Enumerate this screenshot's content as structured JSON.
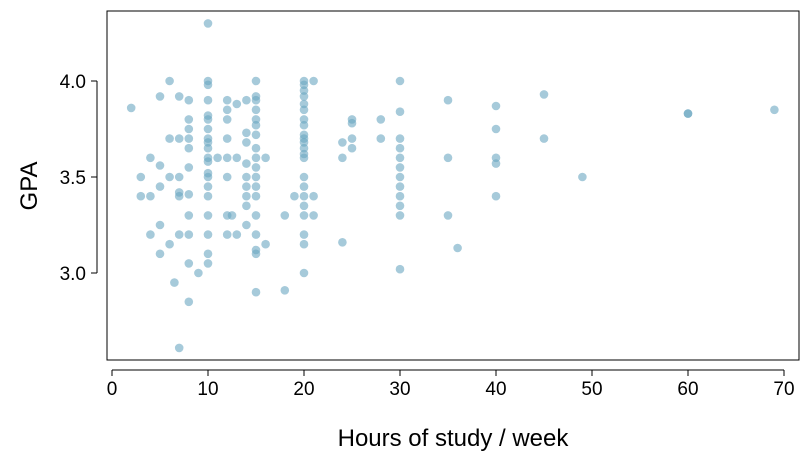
{
  "chart_data": {
    "type": "scatter",
    "xlabel": "Hours of study / week",
    "ylabel": "GPA",
    "xlim": [
      0,
      71
    ],
    "ylim": [
      2.55,
      4.35
    ],
    "xticks": [
      0,
      10,
      20,
      30,
      40,
      50,
      60,
      70
    ],
    "xtick_labels": [
      "0",
      "10",
      "20",
      "30",
      "40",
      "50",
      "60",
      "70"
    ],
    "yticks": [
      3.0,
      3.5,
      4.0
    ],
    "ytick_labels": [
      "3.0",
      "3.5",
      "4.0"
    ],
    "grid": false,
    "point_color": "#6aa6c1",
    "points": [
      [
        2,
        3.86
      ],
      [
        3,
        3.5
      ],
      [
        3,
        3.4
      ],
      [
        4,
        3.6
      ],
      [
        4,
        3.4
      ],
      [
        4,
        3.2
      ],
      [
        5,
        3.92
      ],
      [
        5,
        3.56
      ],
      [
        5,
        3.45
      ],
      [
        5,
        3.25
      ],
      [
        5,
        3.1
      ],
      [
        6,
        4.0
      ],
      [
        6,
        3.7
      ],
      [
        6,
        3.5
      ],
      [
        6,
        3.15
      ],
      [
        6.5,
        2.95
      ],
      [
        7,
        3.92
      ],
      [
        7,
        3.7
      ],
      [
        7,
        3.5
      ],
      [
        7,
        3.42
      ],
      [
        7,
        3.4
      ],
      [
        7,
        3.2
      ],
      [
        7,
        2.61
      ],
      [
        8,
        3.9
      ],
      [
        8,
        3.8
      ],
      [
        8,
        3.75
      ],
      [
        8,
        3.7
      ],
      [
        8,
        3.65
      ],
      [
        8,
        3.55
      ],
      [
        8,
        3.41
      ],
      [
        8,
        3.3
      ],
      [
        8,
        3.2
      ],
      [
        8,
        3.05
      ],
      [
        8,
        2.85
      ],
      [
        9,
        3.0
      ],
      [
        10,
        4.3
      ],
      [
        10,
        4.0
      ],
      [
        10,
        3.98
      ],
      [
        10,
        3.9
      ],
      [
        10,
        3.82
      ],
      [
        10,
        3.8
      ],
      [
        10,
        3.75
      ],
      [
        10,
        3.7
      ],
      [
        10,
        3.68
      ],
      [
        10,
        3.65
      ],
      [
        10,
        3.6
      ],
      [
        10,
        3.58
      ],
      [
        10,
        3.52
      ],
      [
        10,
        3.5
      ],
      [
        10,
        3.45
      ],
      [
        10,
        3.4
      ],
      [
        10,
        3.3
      ],
      [
        10,
        3.2
      ],
      [
        10,
        3.1
      ],
      [
        10,
        3.05
      ],
      [
        11,
        3.6
      ],
      [
        12,
        3.9
      ],
      [
        12,
        3.85
      ],
      [
        12,
        3.8
      ],
      [
        12,
        3.7
      ],
      [
        12,
        3.6
      ],
      [
        12,
        3.5
      ],
      [
        12,
        3.3
      ],
      [
        12,
        3.2
      ],
      [
        12.5,
        3.3
      ],
      [
        13,
        3.88
      ],
      [
        13,
        3.6
      ],
      [
        13,
        3.2
      ],
      [
        14,
        3.9
      ],
      [
        14,
        3.73
      ],
      [
        14,
        3.68
      ],
      [
        14,
        3.57
      ],
      [
        14,
        3.5
      ],
      [
        14,
        3.45
      ],
      [
        14,
        3.4
      ],
      [
        14,
        3.35
      ],
      [
        14,
        3.25
      ],
      [
        15,
        4.0
      ],
      [
        15,
        3.92
      ],
      [
        15,
        3.9
      ],
      [
        15,
        3.85
      ],
      [
        15,
        3.8
      ],
      [
        15,
        3.77
      ],
      [
        15,
        3.72
      ],
      [
        15,
        3.65
      ],
      [
        15,
        3.6
      ],
      [
        15,
        3.55
      ],
      [
        15,
        3.5
      ],
      [
        15,
        3.45
      ],
      [
        15,
        3.4
      ],
      [
        15,
        3.3
      ],
      [
        15,
        3.2
      ],
      [
        15,
        3.12
      ],
      [
        15,
        3.1
      ],
      [
        15,
        2.9
      ],
      [
        16,
        3.6
      ],
      [
        16,
        3.15
      ],
      [
        18,
        3.3
      ],
      [
        18,
        2.91
      ],
      [
        19,
        3.4
      ],
      [
        20,
        4.0
      ],
      [
        20,
        3.98
      ],
      [
        20,
        3.95
      ],
      [
        20,
        3.92
      ],
      [
        20,
        3.88
      ],
      [
        20,
        3.85
      ],
      [
        20,
        3.8
      ],
      [
        20,
        3.77
      ],
      [
        20,
        3.72
      ],
      [
        20,
        3.7
      ],
      [
        20,
        3.68
      ],
      [
        20,
        3.65
      ],
      [
        20,
        3.62
      ],
      [
        20,
        3.6
      ],
      [
        20,
        3.5
      ],
      [
        20,
        3.45
      ],
      [
        20,
        3.4
      ],
      [
        20,
        3.35
      ],
      [
        20,
        3.3
      ],
      [
        20,
        3.2
      ],
      [
        20,
        3.15
      ],
      [
        20,
        3.0
      ],
      [
        21,
        4.0
      ],
      [
        21,
        3.4
      ],
      [
        21,
        3.3
      ],
      [
        24,
        3.68
      ],
      [
        24,
        3.6
      ],
      [
        24,
        3.16
      ],
      [
        25,
        3.8
      ],
      [
        25,
        3.78
      ],
      [
        25,
        3.7
      ],
      [
        25,
        3.65
      ],
      [
        28,
        3.8
      ],
      [
        28,
        3.7
      ],
      [
        30,
        4.0
      ],
      [
        30,
        3.84
      ],
      [
        30,
        3.7
      ],
      [
        30,
        3.65
      ],
      [
        30,
        3.6
      ],
      [
        30,
        3.55
      ],
      [
        30,
        3.5
      ],
      [
        30,
        3.45
      ],
      [
        30,
        3.4
      ],
      [
        30,
        3.35
      ],
      [
        30,
        3.3
      ],
      [
        30,
        3.02
      ],
      [
        35,
        3.9
      ],
      [
        35,
        3.6
      ],
      [
        35,
        3.3
      ],
      [
        36,
        3.13
      ],
      [
        40,
        3.87
      ],
      [
        40,
        3.75
      ],
      [
        40,
        3.6
      ],
      [
        40,
        3.57
      ],
      [
        40,
        3.4
      ],
      [
        45,
        3.93
      ],
      [
        45,
        3.7
      ],
      [
        49,
        3.5
      ],
      [
        60,
        3.83
      ],
      [
        60,
        3.83
      ],
      [
        69,
        3.85
      ]
    ]
  }
}
